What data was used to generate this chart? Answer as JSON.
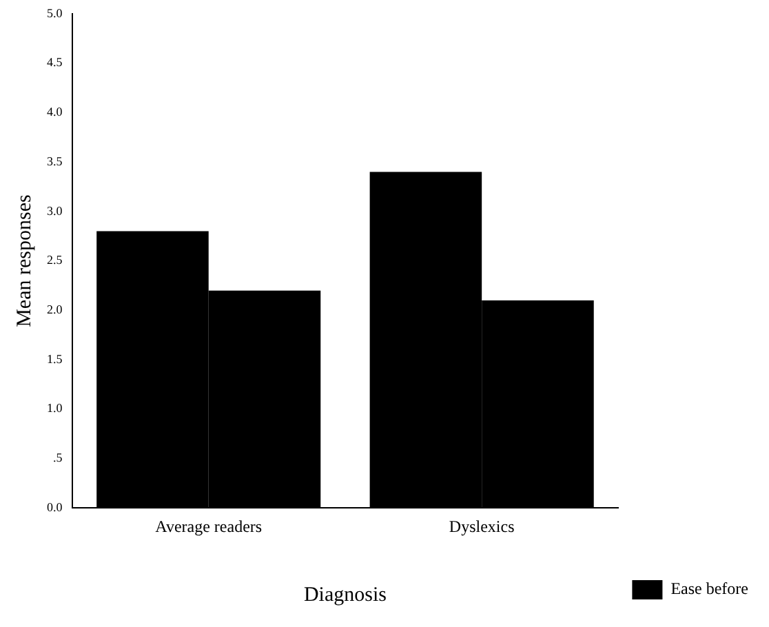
{
  "chart_data": {
    "type": "bar",
    "xlabel": "Diagnosis",
    "ylabel": "Mean responses",
    "categories": [
      "Average readers",
      "Dyslexics"
    ],
    "series": [
      {
        "name": "Ease before",
        "color": "#000000",
        "values": [
          2.8,
          3.4
        ]
      },
      {
        "color": "#000000",
        "values": [
          2.2,
          2.1
        ]
      }
    ],
    "ylim": [
      0,
      5
    ],
    "yticks": [
      {
        "value": 0,
        "label": "0.0"
      },
      {
        "value": 0.5,
        "label": ".5"
      },
      {
        "value": 1,
        "label": "1.0"
      },
      {
        "value": 1.5,
        "label": "1.5"
      },
      {
        "value": 2,
        "label": "2.0"
      },
      {
        "value": 2.5,
        "label": "2.5"
      },
      {
        "value": 3,
        "label": "3.0"
      },
      {
        "value": 3.5,
        "label": "3.5"
      },
      {
        "value": 4,
        "label": "4.0"
      },
      {
        "value": 4.5,
        "label": "4.5"
      },
      {
        "value": 5,
        "label": "5.0"
      }
    ],
    "grid": false,
    "legend": "right"
  }
}
